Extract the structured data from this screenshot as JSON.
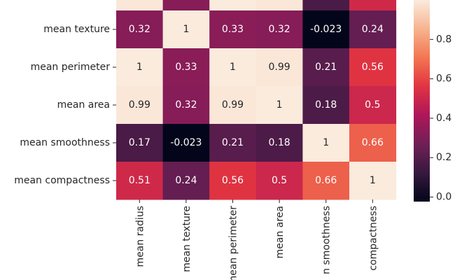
{
  "chart_data": {
    "type": "heatmap",
    "title": "",
    "row_labels": [
      "mean texture",
      "mean perimeter",
      "mean area",
      "mean smoothness",
      "mean compactness"
    ],
    "col_labels": [
      "mean radius",
      "mean texture",
      "mean perimeter",
      "mean area",
      "mean smoothness",
      "mean compactness"
    ],
    "visible_col_labels": [
      "mean radius",
      "mean texture",
      "mean perimeter",
      "mean area",
      "n smoothness",
      "compactness"
    ],
    "values": [
      [
        0.32,
        1,
        0.33,
        0.32,
        -0.023,
        0.24
      ],
      [
        1,
        0.33,
        1,
        0.99,
        0.21,
        0.56
      ],
      [
        0.99,
        0.32,
        0.99,
        1,
        0.18,
        0.5
      ],
      [
        0.17,
        -0.023,
        0.21,
        0.18,
        1,
        0.66
      ],
      [
        0.51,
        0.24,
        0.56,
        0.5,
        0.66,
        1
      ]
    ],
    "labels": [
      [
        "0.32",
        "1",
        "0.33",
        "0.32",
        "-0.023",
        "0.24"
      ],
      [
        "1",
        "0.33",
        "1",
        "0.99",
        "0.21",
        "0.56"
      ],
      [
        "0.99",
        "0.32",
        "0.99",
        "1",
        "0.18",
        "0.5"
      ],
      [
        "0.17",
        "-0.023",
        "0.21",
        "0.18",
        "1",
        "0.66"
      ],
      [
        "0.51",
        "0.24",
        "0.56",
        "0.5",
        "0.66",
        "1"
      ]
    ],
    "top_partial_row": {
      "values": [
        0.99,
        0.32,
        1,
        0.99,
        0.17,
        0.51
      ]
    },
    "colorbar": {
      "range": [
        -0.023,
        1
      ],
      "ticks": [
        0.0,
        0.2,
        0.4,
        0.6,
        0.8
      ],
      "tick_labels": [
        "0.0",
        "0.2",
        "0.4",
        "0.6",
        "0.8"
      ]
    },
    "colors": {
      "stops": [
        "#03051a",
        "#36193e",
        "#701f57",
        "#ae1759",
        "#e13342",
        "#f37651",
        "#f6b48f",
        "#faebdd"
      ],
      "text_light": "#ffffff",
      "text_dark": "#262626"
    }
  }
}
